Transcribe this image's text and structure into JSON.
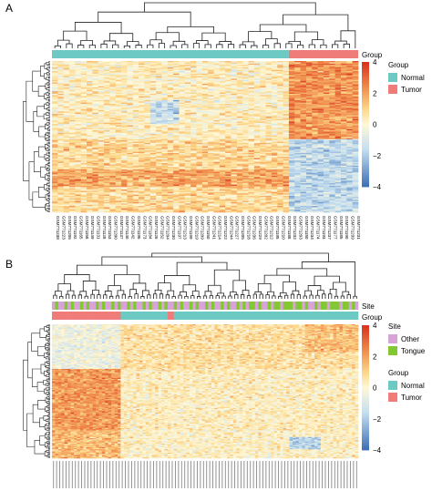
{
  "chart_data": [
    {
      "panel_label": "A",
      "type": "heatmap",
      "annotation_tracks": [
        {
          "name": "Group",
          "legend_title": "Group",
          "levels": [
            {
              "label": "Normal",
              "color": "#6cc9c4"
            },
            {
              "label": "Tumor",
              "color": "#f07c7a"
            }
          ],
          "counts": [
            41,
            12
          ]
        }
      ],
      "color_scale": {
        "min": -4,
        "max": 4,
        "ticks": [
          {
            "value": 4,
            "label": "4"
          },
          {
            "value": 2,
            "label": "2"
          },
          {
            "value": 0,
            "label": "0"
          },
          {
            "value": -2,
            "label": "−2"
          },
          {
            "value": -4,
            "label": "−4"
          }
        ],
        "colors": [
          "#3c6fb4",
          "#c5dff0",
          "#fff8d8",
          "#fcd88a",
          "#f08a4a",
          "#d7301f"
        ]
      },
      "n_rows": 120,
      "n_cols": 53,
      "column_labels": [
        "GSM771238",
        "GSM771223",
        "GSM771206",
        "GSM771192",
        "GSM771165",
        "GSM771158",
        "GSM771149",
        "GSM771131",
        "GSM771128",
        "GSM771153",
        "GSM771200",
        "GSM771137",
        "GSM771140",
        "GSM771142",
        "GSM771196",
        "GSM771173",
        "GSM771184",
        "GSM771126",
        "GSM771152",
        "GSM771204",
        "GSM771230",
        "GSM771197",
        "GSM771213",
        "GSM771199",
        "GSM771219",
        "GSM771209",
        "GSM771150",
        "GSM771241",
        "GSM771214",
        "GSM771222",
        "GSM771244",
        "GSM771227",
        "GSM771205",
        "GSM771218",
        "GSM771236",
        "GSM771229",
        "GSM771202",
        "GSM771212",
        "GSM771195",
        "GSM771210",
        "GSM771188",
        "GSM771232",
        "GSM771203",
        "GSM771180",
        "GSM771234",
        "GSM771174",
        "GSM771193",
        "GSM771237",
        "GSM771177",
        "GSM771185",
        "GSM771190",
        "GSM771239",
        "GSM771231"
      ]
    },
    {
      "panel_label": "B",
      "type": "heatmap",
      "annotation_tracks": [
        {
          "name": "Site",
          "legend_title": "Site",
          "levels": [
            {
              "label": "Other",
              "color": "#d8a4d8"
            },
            {
              "label": "Tongue",
              "color": "#82c832"
            }
          ]
        },
        {
          "name": "Group",
          "legend_title": "Group",
          "levels": [
            {
              "label": "Normal",
              "color": "#6cc9c4"
            },
            {
              "label": "Tumor",
              "color": "#f07c7a"
            }
          ],
          "counts": [
            76,
            22
          ]
        }
      ],
      "color_scale": {
        "min": -4,
        "max": 4,
        "ticks": [
          {
            "value": 4,
            "label": "4"
          },
          {
            "value": 2,
            "label": "2"
          },
          {
            "value": 0,
            "label": "0"
          },
          {
            "value": -2,
            "label": "−2"
          },
          {
            "value": -4,
            "label": "−4"
          }
        ],
        "colors": [
          "#3c6fb4",
          "#c5dff0",
          "#fff8d8",
          "#fcd88a",
          "#f08a4a",
          "#d7301f"
        ]
      },
      "n_rows": 120,
      "n_cols": 98,
      "column_labels": []
    }
  ]
}
